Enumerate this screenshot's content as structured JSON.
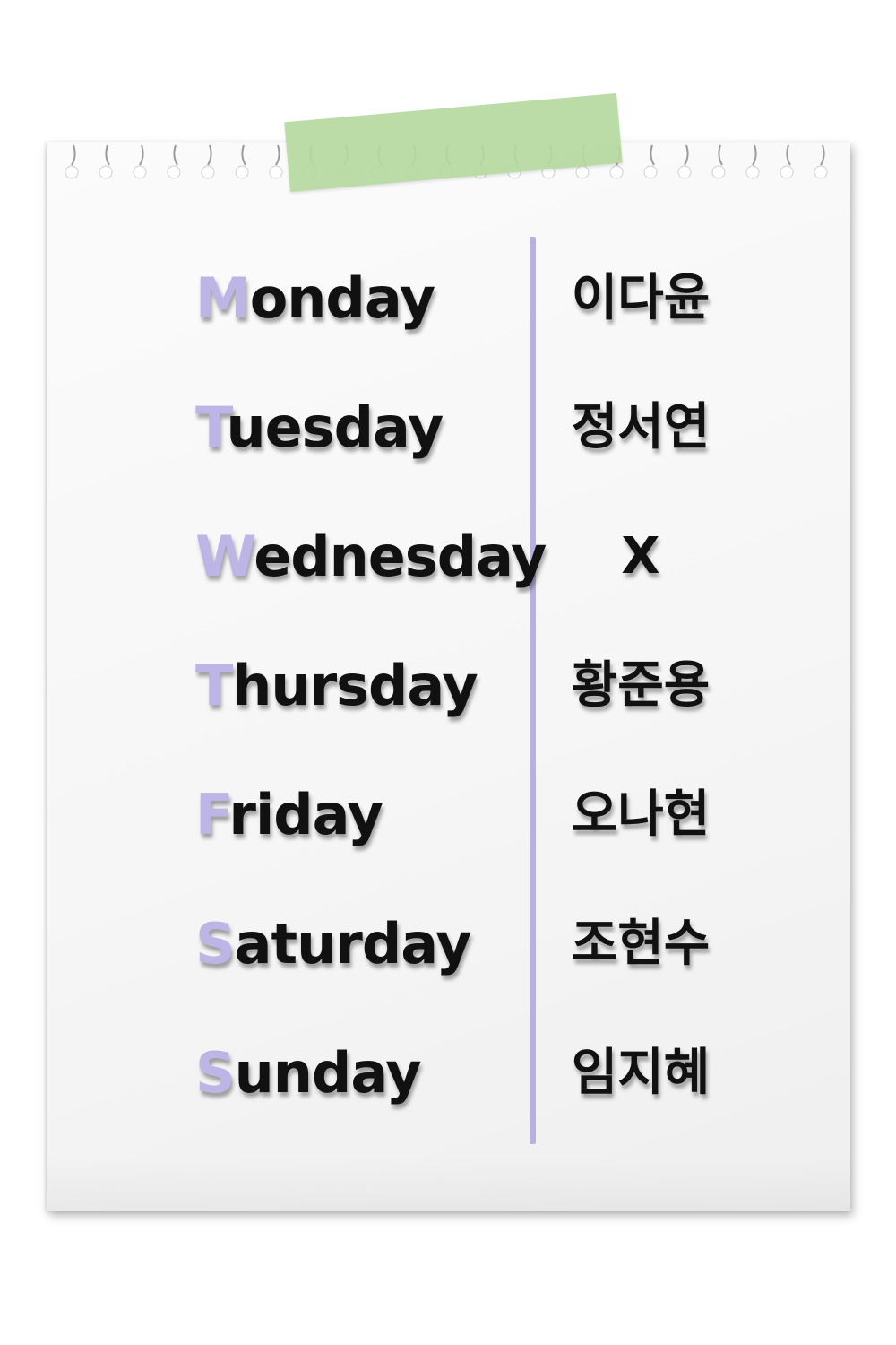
{
  "colors": {
    "initial_letter": "#bcb5e6",
    "divider": "#b7b1e0",
    "tape": "#b6d9a0",
    "text": "#111111",
    "paper": "#f7f7f7"
  },
  "schedule": [
    {
      "day_initial": "M",
      "day_rest": "onday",
      "name": "이다윤"
    },
    {
      "day_initial": "T",
      "day_rest": "uesday",
      "name": "정서연"
    },
    {
      "day_initial": "W",
      "day_rest": "ednesday",
      "name": "X"
    },
    {
      "day_initial": "T",
      "day_rest": "hursday",
      "name": "황준용"
    },
    {
      "day_initial": "F",
      "day_rest": "riday",
      "name": "오나현"
    },
    {
      "day_initial": "S",
      "day_rest": "aturday",
      "name": "조현수"
    },
    {
      "day_initial": "S",
      "day_rest": "unday",
      "name": "임지혜"
    }
  ]
}
